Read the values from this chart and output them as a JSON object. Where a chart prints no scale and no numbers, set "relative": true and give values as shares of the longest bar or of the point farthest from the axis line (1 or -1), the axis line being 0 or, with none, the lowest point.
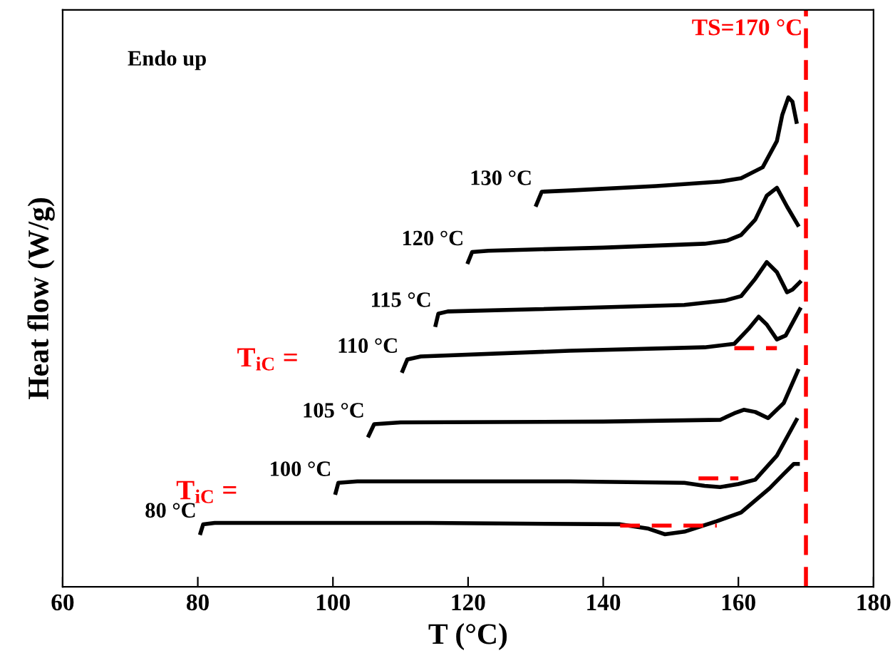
{
  "chart_data": {
    "type": "line",
    "relative": true,
    "xlabel": "T (°C)",
    "ylabel": "Heat flow (W/g)",
    "xlim": [
      60,
      180
    ],
    "xticks": [
      60,
      80,
      100,
      120,
      140,
      160,
      180
    ],
    "grid": false,
    "legend": false,
    "marker": "none",
    "line_style": "solid",
    "series": [
      {
        "name": "80 °C",
        "color": "#000000",
        "x": [
          80.4,
          80.8,
          82.5,
          114.1,
          142.5,
          146.7,
          149.1,
          152,
          156.8,
          160.4,
          164.6,
          166.7,
          168.2,
          168.8
        ],
        "values": [
          0.003,
          0.023,
          0.026,
          0.026,
          0.023,
          0.013,
          0,
          0.006,
          0.03,
          0.05,
          0.105,
          0.138,
          0.161,
          0.161
        ]
      },
      {
        "name": "100 °C",
        "color": "#000000",
        "x": [
          100.4,
          100.8,
          103.6,
          135,
          152,
          155,
          157.3,
          160,
          162.5,
          165.7,
          168.6
        ],
        "values": [
          0.095,
          0.118,
          0.121,
          0.121,
          0.118,
          0.111,
          0.108,
          0.115,
          0.125,
          0.18,
          0.262
        ]
      },
      {
        "name": "105 °C",
        "color": "#000000",
        "x": [
          105.3,
          106.1,
          110,
          140,
          157.3,
          159.4,
          160.8,
          162.5,
          164.4,
          166.7,
          168.8
        ],
        "values": [
          0.226,
          0.252,
          0.256,
          0.258,
          0.262,
          0.277,
          0.285,
          0.28,
          0.266,
          0.3,
          0.374
        ]
      },
      {
        "name": "110 °C",
        "color": "#000000",
        "x": [
          110.3,
          111,
          113,
          135,
          155,
          159.4,
          161.5,
          163,
          164.2,
          165.7,
          167,
          169.1
        ],
        "values": [
          0.374,
          0.4,
          0.407,
          0.42,
          0.428,
          0.436,
          0.47,
          0.498,
          0.48,
          0.446,
          0.455,
          0.515
        ]
      },
      {
        "name": "115 °C",
        "color": "#000000",
        "x": [
          115.2,
          115.6,
          117,
          130,
          152,
          158,
          160.4,
          162.5,
          164.2,
          165.7,
          167.2,
          168,
          169.1
        ],
        "values": [
          0.479,
          0.505,
          0.51,
          0.515,
          0.525,
          0.535,
          0.545,
          0.585,
          0.623,
          0.6,
          0.554,
          0.56,
          0.577
        ]
      },
      {
        "name": "120 °C",
        "color": "#000000",
        "x": [
          120,
          120.6,
          123,
          140,
          155,
          158.3,
          160.4,
          162.5,
          164.2,
          165.7,
          167.2,
          168.8
        ],
        "values": [
          0.623,
          0.646,
          0.649,
          0.656,
          0.665,
          0.672,
          0.685,
          0.72,
          0.775,
          0.793,
          0.75,
          0.708
        ]
      },
      {
        "name": "130 °C",
        "color": "#000000",
        "x": [
          130.1,
          130.9,
          135.2,
          147.8,
          157.3,
          160.4,
          163.6,
          165.7,
          166.5,
          167.4,
          168,
          168.6
        ],
        "values": [
          0.754,
          0.784,
          0.787,
          0.797,
          0.807,
          0.815,
          0.84,
          0.9,
          0.96,
          1.0,
          0.99,
          0.944
        ]
      },
      {
        "color": "#ff0000",
        "line_style": "dashed",
        "x": [
          142.5,
          156.8
        ],
        "values": [
          0.02,
          0.02
        ]
      },
      {
        "color": "#ff0000",
        "line_style": "dashed",
        "x": [
          154.1,
          160
        ],
        "values": [
          0.128,
          0.128
        ]
      },
      {
        "color": "#ff0000",
        "line_style": "dashed",
        "x": [
          159.4,
          165.7
        ],
        "values": [
          0.426,
          0.426
        ]
      }
    ],
    "ref_lines": [
      {
        "axis": "x",
        "value": 170,
        "label": "TS=170 °C",
        "color": "#ff0000",
        "line_style": "dashed"
      }
    ],
    "annotations": [
      "Endo up",
      "T$_{iC}$ =",
      "T$_{iC}$ ="
    ]
  }
}
